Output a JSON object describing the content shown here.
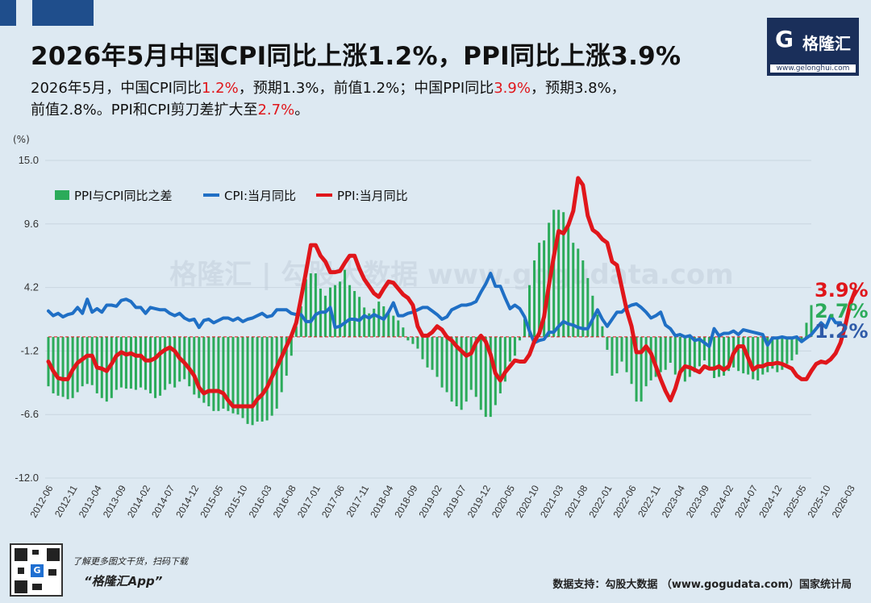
{
  "header": {
    "title": "2026年5月中国CPI同比上涨1.2%，PPI同比上涨3.9%",
    "logo_mark": "G",
    "logo_name": "格隆汇",
    "logo_url": "www.gelonghui.com"
  },
  "subtitle": {
    "p1": "2026年5月，中国CPI同比",
    "v1": "1.2%",
    "p2": "，预期1.3%，前值1.2%；中国PPI同比",
    "v2": "3.9%",
    "p3": "，预期3.8%，",
    "p4": "前值2.8%。PPI和CPI剪刀差扩大至",
    "v3": "2.7%",
    "p5": "。"
  },
  "colors": {
    "cpi": "#1f6fc5",
    "ppi": "#e0161b",
    "diff": "#2bab5a",
    "zero": "#e0161b"
  },
  "chart_data": {
    "type": "line+bar",
    "unit": "(%)",
    "ylim": [
      -12.0,
      15.0
    ],
    "yticks": [
      "15.0",
      "9.6",
      "4.2",
      "-1.2",
      "-6.6",
      "-12.0"
    ],
    "x_tick_labels": [
      "2012-06",
      "2012-11",
      "2013-04",
      "2013-09",
      "2014-02",
      "2014-07",
      "2014-12",
      "2015-05",
      "2015-10",
      "2016-03",
      "2016-08",
      "2017-01",
      "2017-06",
      "2017-11",
      "2018-04",
      "2018-09",
      "2019-02",
      "2019-07",
      "2019-12",
      "2020-05",
      "2020-10",
      "2021-03",
      "2021-08",
      "2022-01",
      "2022-06",
      "2022-11",
      "2023-04",
      "2023-09",
      "2024-02",
      "2024-07",
      "2024-12",
      "2025-05",
      "2025-10",
      "2026-03"
    ],
    "start": "2012-06",
    "end": "2026-05",
    "grid": true,
    "legend_position": "top-left",
    "series": [
      {
        "name": "PPI与CPI同比之差",
        "kind": "bar",
        "values": [
          -4.2,
          -4.8,
          -5.0,
          -5.1,
          -5.3,
          -5.2,
          -4.7,
          -4.2,
          -4.0,
          -4.1,
          -4.8,
          -5.2,
          -5.5,
          -5.2,
          -4.5,
          -4.3,
          -4.4,
          -4.4,
          -4.5,
          -4.3,
          -4.5,
          -4.8,
          -5.2,
          -5.0,
          -4.5,
          -4.0,
          -4.3,
          -3.8,
          -3.6,
          -4.2,
          -4.9,
          -5.2,
          -5.6,
          -5.9,
          -6.3,
          -6.3,
          -6.1,
          -6.3,
          -6.5,
          -6.6,
          -6.9,
          -7.4,
          -7.5,
          -7.2,
          -7.2,
          -7.1,
          -6.7,
          -6.1,
          -4.7,
          -3.3,
          -1.6,
          0.9,
          2.6,
          4.9,
          5.4,
          5.4,
          4.1,
          3.5,
          4.2,
          4.4,
          4.7,
          5.7,
          4.4,
          3.9,
          3.4,
          2.5,
          2.0,
          2.4,
          3.0,
          2.6,
          2.0,
          1.8,
          1.4,
          0.8,
          -0.3,
          -0.6,
          -1.0,
          -1.9,
          -2.6,
          -2.8,
          -3.4,
          -4.3,
          -4.7,
          -5.5,
          -5.9,
          -6.2,
          -5.5,
          -4.5,
          -5.1,
          -6.2,
          -6.8,
          -6.8,
          -5.8,
          -4.8,
          -3.8,
          -2.1,
          -1.6,
          -0.3,
          1.5,
          4.4,
          6.5,
          8.0,
          8.2,
          9.7,
          10.8,
          10.8,
          10.6,
          9.6,
          8.0,
          7.5,
          6.5,
          5.0,
          3.5,
          1.9,
          0.9,
          -1.1,
          -3.3,
          -3.1,
          -2.1,
          -3.0,
          -4.0,
          -5.5,
          -5.5,
          -4.2,
          -3.7,
          -3.4,
          -3.0,
          -2.8,
          -2.2,
          -3.2,
          -3.1,
          -3.8,
          -3.4,
          -3.0,
          -2.5,
          -2.0,
          -2.7,
          -3.5,
          -3.4,
          -3.3,
          -2.9,
          -2.6,
          -2.9,
          -3.1,
          -3.2,
          -3.6,
          -3.7,
          -3.2,
          -3.0,
          -2.7,
          -3.0,
          -2.8,
          -2.3,
          -2.0,
          -1.5,
          -0.5,
          1.2,
          2.7
        ]
      },
      {
        "name": "CPI:当月同比",
        "kind": "line",
        "values": [
          2.2,
          1.8,
          2.0,
          1.7,
          1.9,
          2.0,
          2.5,
          2.0,
          3.2,
          2.1,
          2.4,
          2.1,
          2.7,
          2.7,
          2.6,
          3.1,
          3.2,
          3.0,
          2.5,
          2.5,
          2.0,
          2.5,
          2.4,
          2.3,
          2.3,
          2.0,
          1.8,
          2.0,
          1.6,
          1.4,
          1.5,
          0.8,
          1.4,
          1.5,
          1.2,
          1.4,
          1.6,
          1.6,
          1.4,
          1.6,
          1.3,
          1.5,
          1.6,
          1.8,
          2.0,
          1.7,
          1.8,
          2.3,
          2.3,
          2.3,
          2.0,
          1.9,
          1.9,
          1.3,
          1.3,
          1.9,
          2.1,
          2.1,
          2.5,
          0.8,
          0.9,
          1.2,
          1.5,
          1.5,
          1.4,
          1.8,
          1.6,
          1.9,
          1.7,
          1.5,
          2.1,
          2.9,
          1.8,
          1.8,
          2.0,
          2.1,
          2.3,
          2.5,
          2.5,
          2.2,
          1.9,
          1.5,
          1.7,
          2.3,
          2.5,
          2.7,
          2.7,
          2.8,
          3.0,
          3.8,
          4.5,
          5.4,
          4.3,
          4.3,
          3.3,
          2.4,
          2.7,
          2.4,
          1.7,
          0.5,
          -0.5,
          -0.3,
          -0.2,
          0.4,
          0.4,
          0.9,
          1.3,
          1.1,
          1.0,
          0.8,
          0.7,
          0.7,
          1.5,
          2.3,
          1.5,
          0.9,
          1.5,
          2.1,
          2.1,
          2.5,
          2.7,
          2.8,
          2.5,
          2.1,
          1.6,
          1.8,
          2.1,
          1.0,
          0.7,
          0.1,
          0.2,
          0.0,
          0.1,
          -0.3,
          -0.2,
          -0.5,
          -0.8,
          0.7,
          0.1,
          0.3,
          0.3,
          0.5,
          0.2,
          0.6,
          0.5,
          0.4,
          0.3,
          0.2,
          -0.7,
          -0.1,
          -0.1,
          0.0,
          -0.1,
          -0.1,
          0.0,
          -0.4,
          -0.1,
          0.2,
          0.7,
          1.2,
          0.8,
          1.8,
          1.2,
          1.2
        ]
      },
      {
        "name": "PPI:当月同比",
        "kind": "line",
        "values": [
          -2.1,
          -2.9,
          -3.5,
          -3.6,
          -3.6,
          -2.8,
          -2.2,
          -1.9,
          -1.6,
          -1.6,
          -2.6,
          -2.7,
          -2.9,
          -2.3,
          -1.6,
          -1.3,
          -1.5,
          -1.4,
          -1.6,
          -1.6,
          -2.0,
          -2.0,
          -1.8,
          -1.4,
          -1.1,
          -0.9,
          -1.2,
          -1.8,
          -2.2,
          -2.7,
          -3.3,
          -4.3,
          -4.8,
          -4.6,
          -4.6,
          -4.6,
          -4.8,
          -5.4,
          -5.9,
          -5.9,
          -5.9,
          -5.9,
          -5.9,
          -5.3,
          -4.9,
          -4.3,
          -3.4,
          -2.6,
          -1.7,
          -0.8,
          0.1,
          1.2,
          3.3,
          5.5,
          7.8,
          7.8,
          6.9,
          6.4,
          5.5,
          5.5,
          5.6,
          6.3,
          6.9,
          6.9,
          5.8,
          4.9,
          4.3,
          3.7,
          3.4,
          4.1,
          4.7,
          4.6,
          4.1,
          3.6,
          3.3,
          2.7,
          0.9,
          0.1,
          0.1,
          0.4,
          0.9,
          0.6,
          0.0,
          -0.3,
          -0.8,
          -1.2,
          -1.6,
          -1.4,
          -0.5,
          0.1,
          -0.4,
          -1.5,
          -3.1,
          -3.7,
          -3.0,
          -2.5,
          -2.0,
          -2.1,
          -2.1,
          -1.5,
          -0.4,
          0.3,
          1.7,
          4.4,
          6.8,
          9.0,
          8.8,
          9.5,
          10.7,
          13.5,
          12.9,
          10.3,
          9.1,
          8.8,
          8.3,
          8.0,
          6.4,
          6.1,
          4.2,
          2.3,
          0.9,
          -1.3,
          -1.3,
          -0.8,
          -1.4,
          -2.5,
          -3.6,
          -4.6,
          -5.4,
          -4.4,
          -3.0,
          -2.5,
          -2.6,
          -2.8,
          -3.0,
          -2.5,
          -2.7,
          -2.7,
          -2.5,
          -2.8,
          -2.5,
          -1.4,
          -0.8,
          -0.8,
          -1.8,
          -2.8,
          -2.5,
          -2.5,
          -2.3,
          -2.3,
          -2.2,
          -2.3,
          -2.5,
          -2.7,
          -3.3,
          -3.6,
          -3.6,
          -2.9,
          -2.3,
          -2.1,
          -2.2,
          -1.9,
          -1.4,
          -0.5,
          1.0,
          2.8,
          3.9
        ]
      }
    ],
    "end_labels": {
      "ppi": "3.9%",
      "diff": "2.7%",
      "cpi": "1.2%"
    },
    "watermark": "格隆汇 | 勾股大数据  www.gogudata.com"
  },
  "footer": {
    "qr_badge": "G",
    "promo": "了解更多图文干货，扫码下载",
    "app": "“格隆汇App”",
    "source": "数据支持：勾股大数据 （www.gogudata.com）国家统计局"
  }
}
